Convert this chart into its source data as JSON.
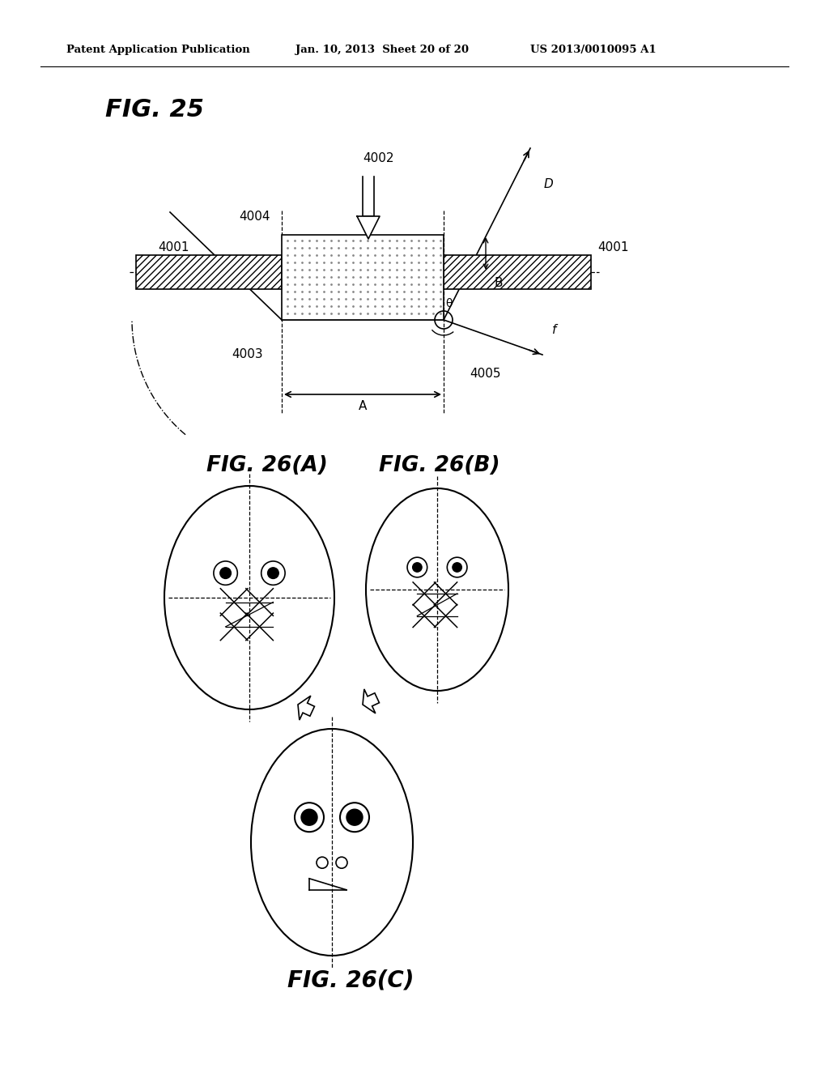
{
  "bg_color": "#ffffff",
  "header_left": "Patent Application Publication",
  "header_mid": "Jan. 10, 2013  Sheet 20 of 20",
  "header_right": "US 2013/0010095 A1",
  "fig25_title": "FIG. 25",
  "fig26A_title": "FIG. 26(A)",
  "fig26B_title": "FIG. 26(B)",
  "fig26C_title": "FIG. 26(C)",
  "labels": {
    "4001_left": "4001",
    "4001_right": "4001",
    "4002": "4002",
    "4003": "4003",
    "4004": "4004",
    "4005": "4005",
    "A": "A",
    "B": "B",
    "D": "D",
    "f": "f",
    "theta": "θ"
  }
}
